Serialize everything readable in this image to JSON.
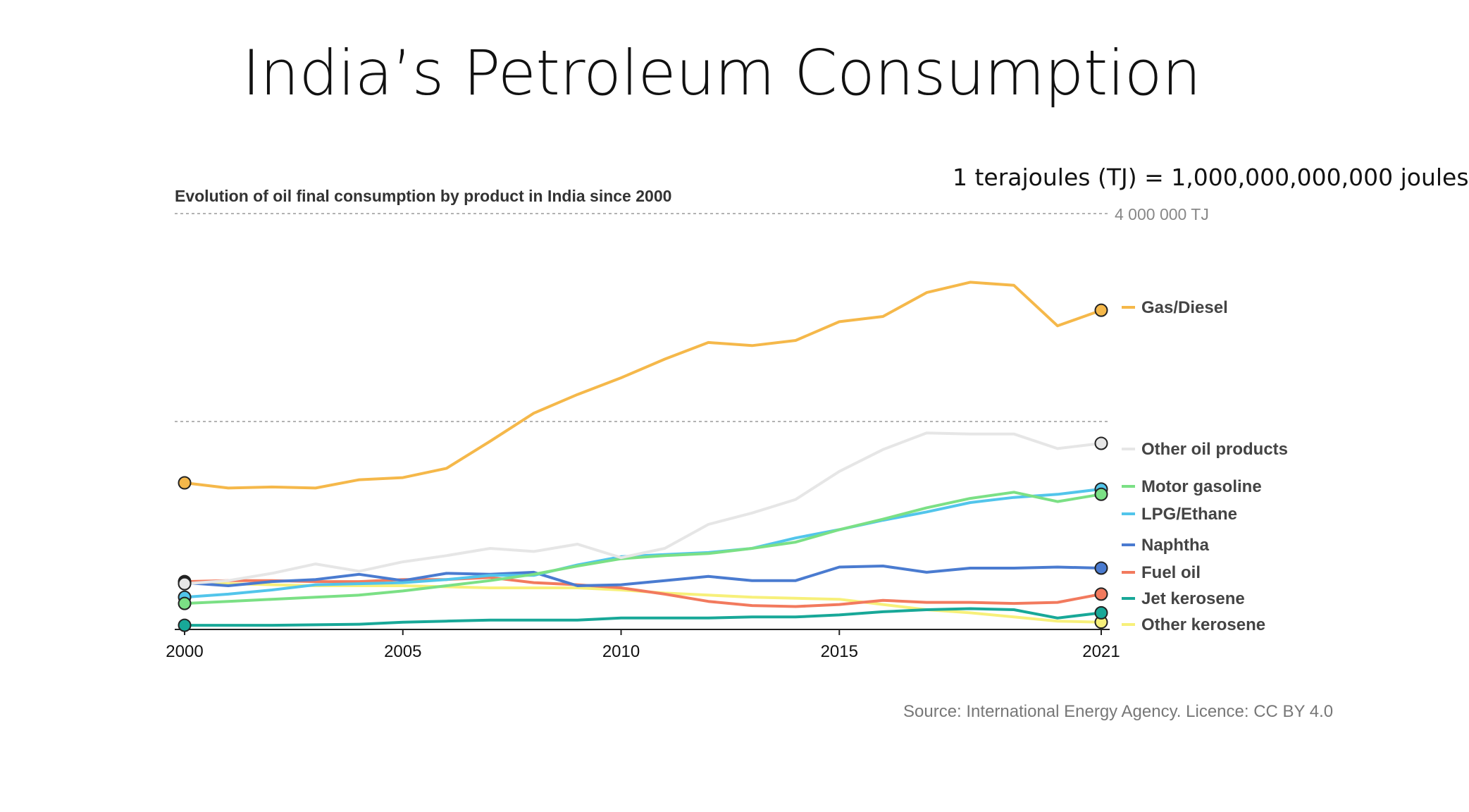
{
  "slide": {
    "title": "India’s Petroleum Consumption",
    "unit_note": "1 terajoules (TJ) = 1,000,000,000,000 joules",
    "source": "Source: International Energy Agency. Licence: CC BY 4.0"
  },
  "chart_data": {
    "type": "line",
    "title": "Evolution of oil final consumption by product in India since 2000",
    "xlabel": "",
    "ylabel": "",
    "xlim": [
      2000,
      2021
    ],
    "ylim": [
      0,
      4000000
    ],
    "x_ticks": [
      "2000",
      "2005",
      "2010",
      "2015",
      "2021"
    ],
    "y_tick_label": "4 000 000 TJ",
    "grid": "dashed horizontal",
    "legend": "right",
    "x": [
      2000,
      2001,
      2002,
      2003,
      2004,
      2005,
      2006,
      2007,
      2008,
      2009,
      2010,
      2011,
      2012,
      2013,
      2014,
      2015,
      2016,
      2017,
      2018,
      2019,
      2020,
      2021
    ],
    "series": [
      {
        "name": "Gas/Diesel",
        "color": "#f5b84a",
        "values": [
          1410000,
          1360000,
          1370000,
          1360000,
          1440000,
          1460000,
          1550000,
          1810000,
          2080000,
          2260000,
          2420000,
          2600000,
          2760000,
          2730000,
          2780000,
          2960000,
          3010000,
          3240000,
          3340000,
          3310000,
          2920000,
          3070000
        ]
      },
      {
        "name": "Other oil products",
        "color": "#e6e6e6",
        "values": [
          440000,
          470000,
          540000,
          630000,
          560000,
          650000,
          710000,
          780000,
          750000,
          820000,
          690000,
          780000,
          1010000,
          1120000,
          1250000,
          1520000,
          1730000,
          1890000,
          1880000,
          1880000,
          1740000,
          1790000
        ]
      },
      {
        "name": "Motor gasoline",
        "color": "#7be085",
        "values": [
          250000,
          270000,
          290000,
          310000,
          330000,
          370000,
          420000,
          470000,
          530000,
          610000,
          680000,
          710000,
          730000,
          780000,
          840000,
          960000,
          1060000,
          1170000,
          1260000,
          1320000,
          1230000,
          1300000
        ]
      },
      {
        "name": "LPG/Ethane",
        "color": "#52c5eb",
        "values": [
          310000,
          340000,
          380000,
          430000,
          440000,
          450000,
          480000,
          520000,
          520000,
          620000,
          700000,
          720000,
          740000,
          780000,
          880000,
          960000,
          1050000,
          1130000,
          1220000,
          1270000,
          1300000,
          1350000
        ]
      },
      {
        "name": "Naphtha",
        "color": "#4a7bd0",
        "values": [
          450000,
          420000,
          460000,
          480000,
          530000,
          470000,
          540000,
          530000,
          550000,
          420000,
          430000,
          470000,
          510000,
          470000,
          470000,
          600000,
          610000,
          550000,
          590000,
          590000,
          600000,
          590000
        ]
      },
      {
        "name": "Fuel oil",
        "color": "#f27a5e",
        "values": [
          460000,
          470000,
          470000,
          460000,
          460000,
          480000,
          480000,
          500000,
          450000,
          430000,
          400000,
          340000,
          270000,
          230000,
          220000,
          240000,
          280000,
          260000,
          260000,
          250000,
          260000,
          340000
        ]
      },
      {
        "name": "Jet kerosene",
        "color": "#18a898",
        "values": [
          40000,
          40000,
          40000,
          45000,
          50000,
          70000,
          80000,
          90000,
          90000,
          90000,
          110000,
          110000,
          110000,
          120000,
          120000,
          140000,
          170000,
          190000,
          200000,
          190000,
          110000,
          160000
        ]
      },
      {
        "name": "Other kerosene",
        "color": "#f7f07a",
        "values": [
          450000,
          440000,
          430000,
          420000,
          420000,
          420000,
          410000,
          400000,
          400000,
          400000,
          380000,
          350000,
          330000,
          310000,
          300000,
          290000,
          240000,
          190000,
          160000,
          120000,
          80000,
          70000
        ]
      }
    ]
  }
}
